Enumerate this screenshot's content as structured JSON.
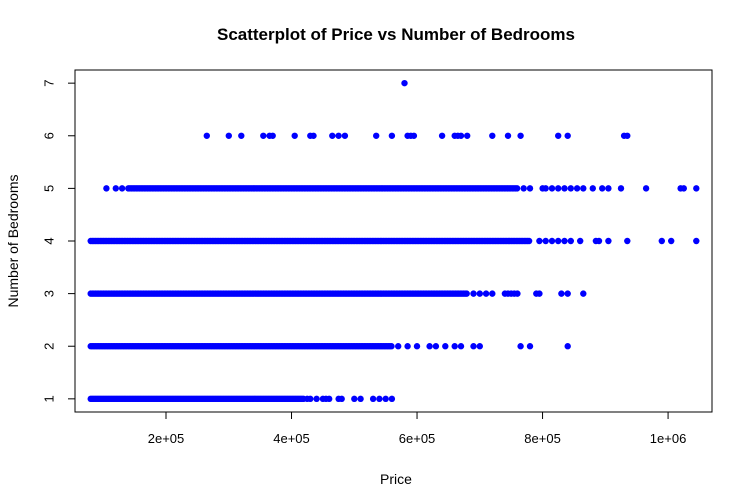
{
  "chart_data": {
    "type": "scatter",
    "title": "Scatterplot of Price vs Number of Bedrooms",
    "xlabel": "Price",
    "ylabel": "Number of Bedrooms",
    "xlim": [
      55000,
      1070000
    ],
    "ylim": [
      0.75,
      7.25
    ],
    "x_ticks": [
      200000,
      400000,
      600000,
      800000,
      1000000
    ],
    "x_tick_labels": [
      "2e+05",
      "4e+05",
      "6e+05",
      "8e+05",
      "1e+06"
    ],
    "y_ticks": [
      1,
      2,
      3,
      4,
      5,
      6,
      7
    ],
    "y_tick_labels": [
      "1",
      "2",
      "3",
      "4",
      "5",
      "6",
      "7"
    ],
    "grid": false,
    "legend": "none",
    "marker_color": "#0000ff",
    "series": [
      {
        "points_by_bedrooms": [
          {
            "y": 1,
            "dense_range": [
              80000,
              420000
            ],
            "x": [
              425000,
              430000,
              440000,
              450000,
              455000,
              460000,
              475000,
              480000,
              500000,
              510000,
              530000,
              540000,
              550000,
              560000
            ]
          },
          {
            "y": 2,
            "dense_range": [
              80000,
              560000
            ],
            "x": [
              570000,
              585000,
              600000,
              620000,
              630000,
              645000,
              660000,
              670000,
              690000,
              700000,
              765000,
              780000,
              840000
            ]
          },
          {
            "y": 3,
            "dense_range": [
              80000,
              680000
            ],
            "x": [
              690000,
              700000,
              710000,
              720000,
              740000,
              745000,
              750000,
              755000,
              760000,
              790000,
              795000,
              830000,
              840000,
              865000
            ]
          },
          {
            "y": 4,
            "dense_range": [
              80000,
              780000
            ],
            "x": [
              795000,
              805000,
              815000,
              825000,
              835000,
              845000,
              860000,
              885000,
              890000,
              905000,
              935000,
              990000,
              1005000,
              1045000
            ]
          },
          {
            "y": 5,
            "dense_range": [
              140000,
              760000
            ],
            "x": [
              105000,
              120000,
              130000,
              770000,
              780000,
              800000,
              805000,
              815000,
              825000,
              835000,
              845000,
              855000,
              865000,
              880000,
              895000,
              905000,
              925000,
              965000,
              1020000,
              1025000,
              1045000
            ]
          },
          {
            "y": 6,
            "x": [
              265000,
              300000,
              320000,
              355000,
              365000,
              370000,
              405000,
              430000,
              435000,
              465000,
              475000,
              485000,
              535000,
              560000,
              585000,
              590000,
              595000,
              640000,
              660000,
              665000,
              670000,
              680000,
              720000,
              745000,
              765000,
              825000,
              840000,
              930000,
              935000
            ]
          },
          {
            "y": 7,
            "x": [
              580000
            ]
          }
        ]
      }
    ]
  }
}
